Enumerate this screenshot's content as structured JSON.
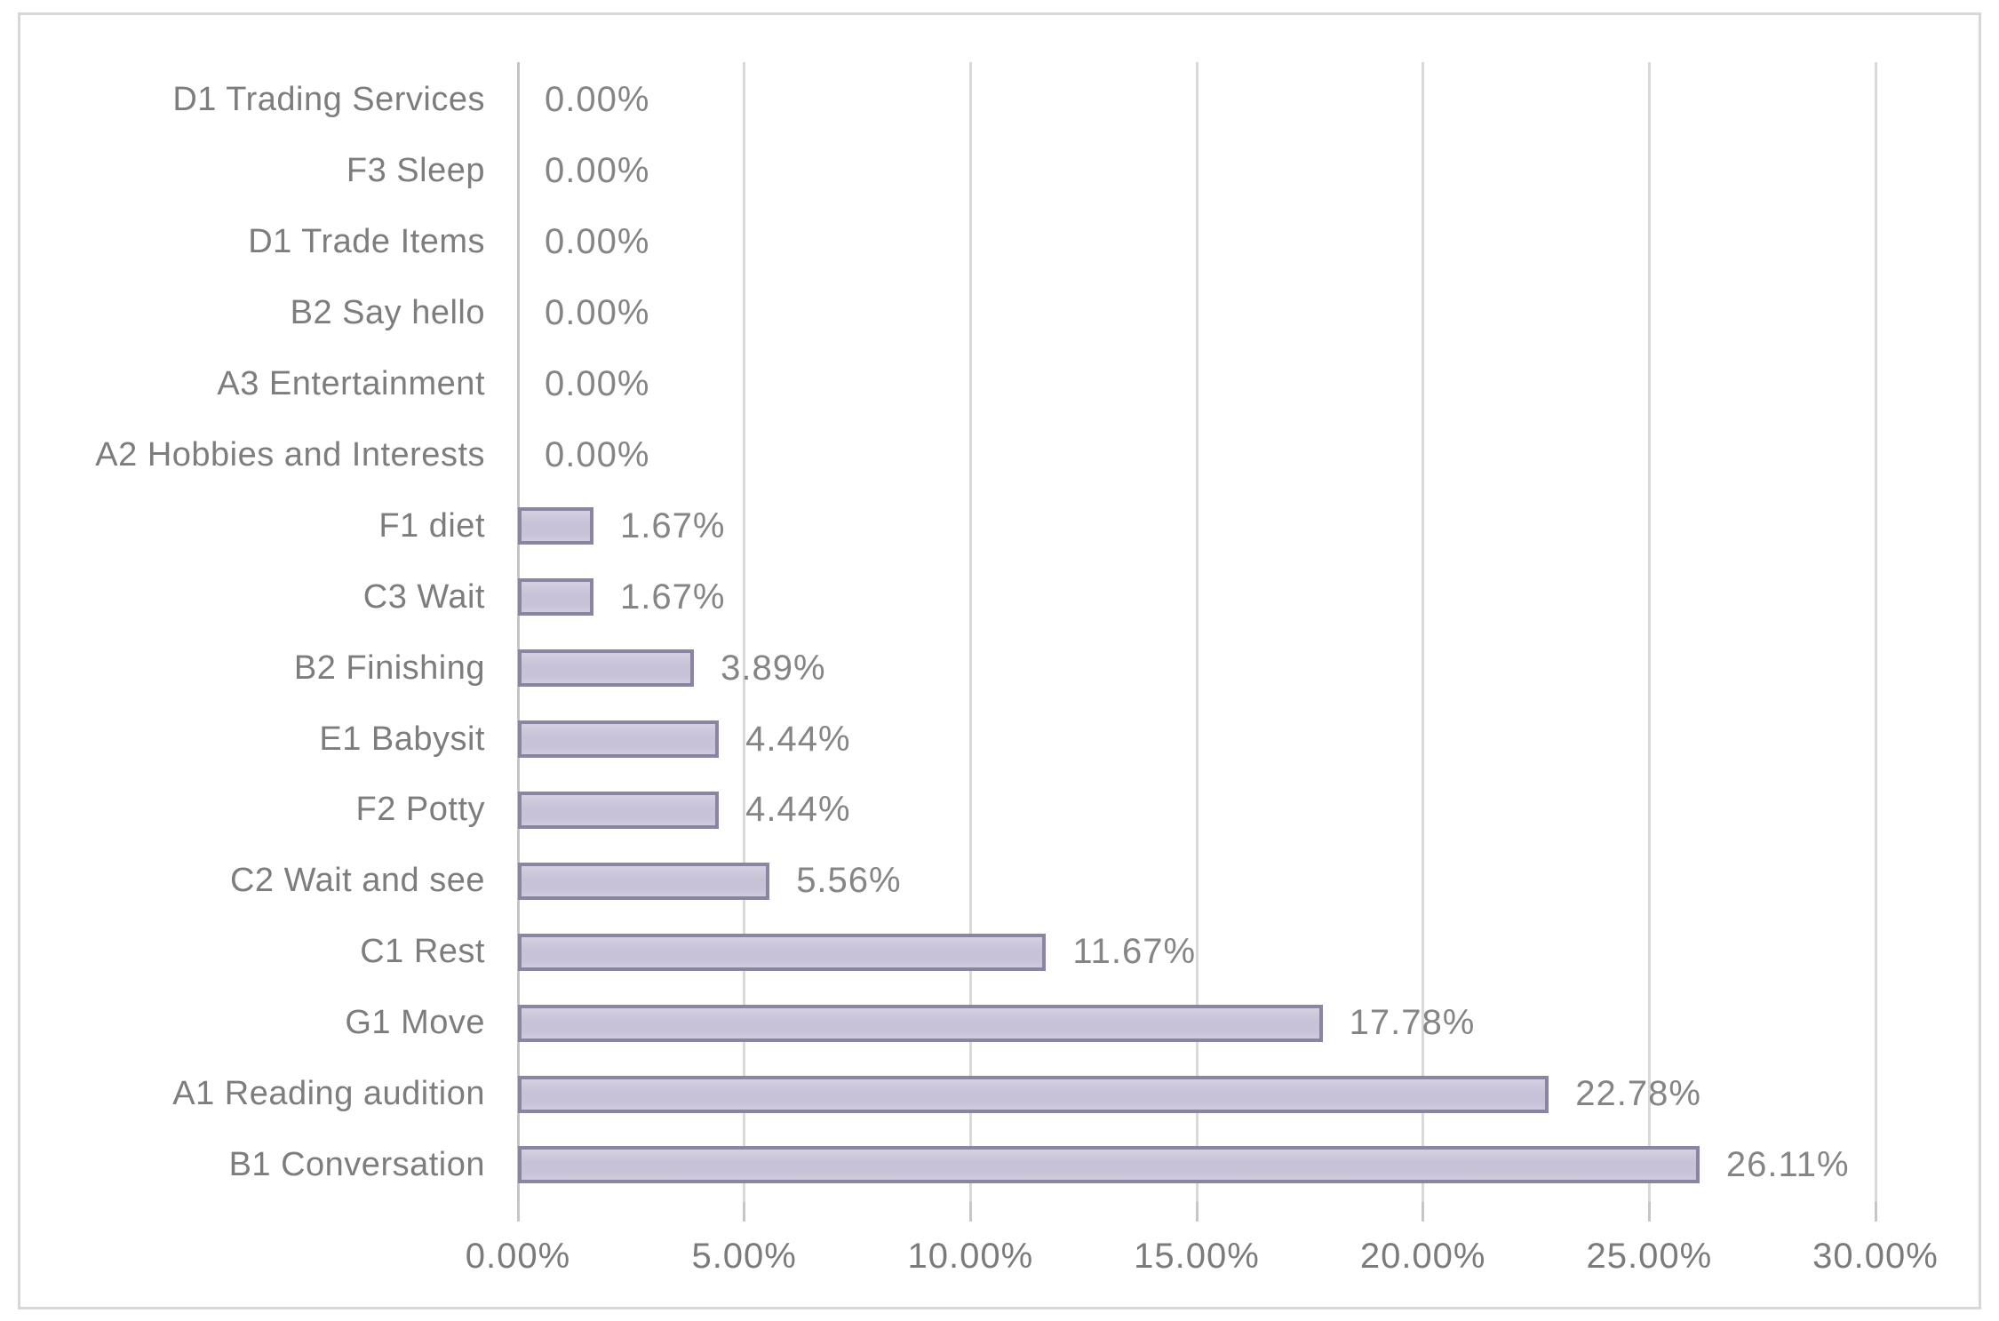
{
  "chart_data": {
    "type": "bar",
    "orientation": "horizontal",
    "title": "",
    "xlabel": "",
    "ylabel": "",
    "legend": "none",
    "grid": "vertical-gridlines",
    "categories_top_to_bottom": [
      "D1 Trading Services",
      "F3 Sleep",
      "D1 Trade Items",
      "B2 Say hello",
      "A3 Entertainment",
      "A2 Hobbies and Interests",
      "F1 diet",
      "C3 Wait",
      "B2 Finishing",
      "E1 Babysit",
      "F2 Potty",
      "C2 Wait and see",
      "C1 Rest",
      "G1 Move",
      "A1 Reading audition",
      "B1 Conversation"
    ],
    "values_percent": [
      0.0,
      0.0,
      0.0,
      0.0,
      0.0,
      0.0,
      1.67,
      1.67,
      3.89,
      4.44,
      4.44,
      5.56,
      11.67,
      17.78,
      22.78,
      26.11
    ],
    "value_labels": [
      "0.00%",
      "0.00%",
      "0.00%",
      "0.00%",
      "0.00%",
      "0.00%",
      "1.67%",
      "1.67%",
      "3.89%",
      "4.44%",
      "4.44%",
      "5.56%",
      "11.67%",
      "17.78%",
      "22.78%",
      "26.11%"
    ],
    "x_axis": {
      "tick_labels": [
        "0.00%",
        "5.00%",
        "10.00%",
        "15.00%",
        "20.00%",
        "25.00%",
        "30.00%"
      ],
      "min_percent": 0,
      "max_percent": 30,
      "step_percent": 5
    },
    "colors": {
      "bar_fill": "#c9c4d8",
      "bar_border": "#8b84a3",
      "gridline": "#d9d9d9",
      "axis_line": "#c4c4c4",
      "text": "#7d7d7d",
      "frame_border": "#d8d6d6",
      "background": "#ffffff"
    }
  }
}
